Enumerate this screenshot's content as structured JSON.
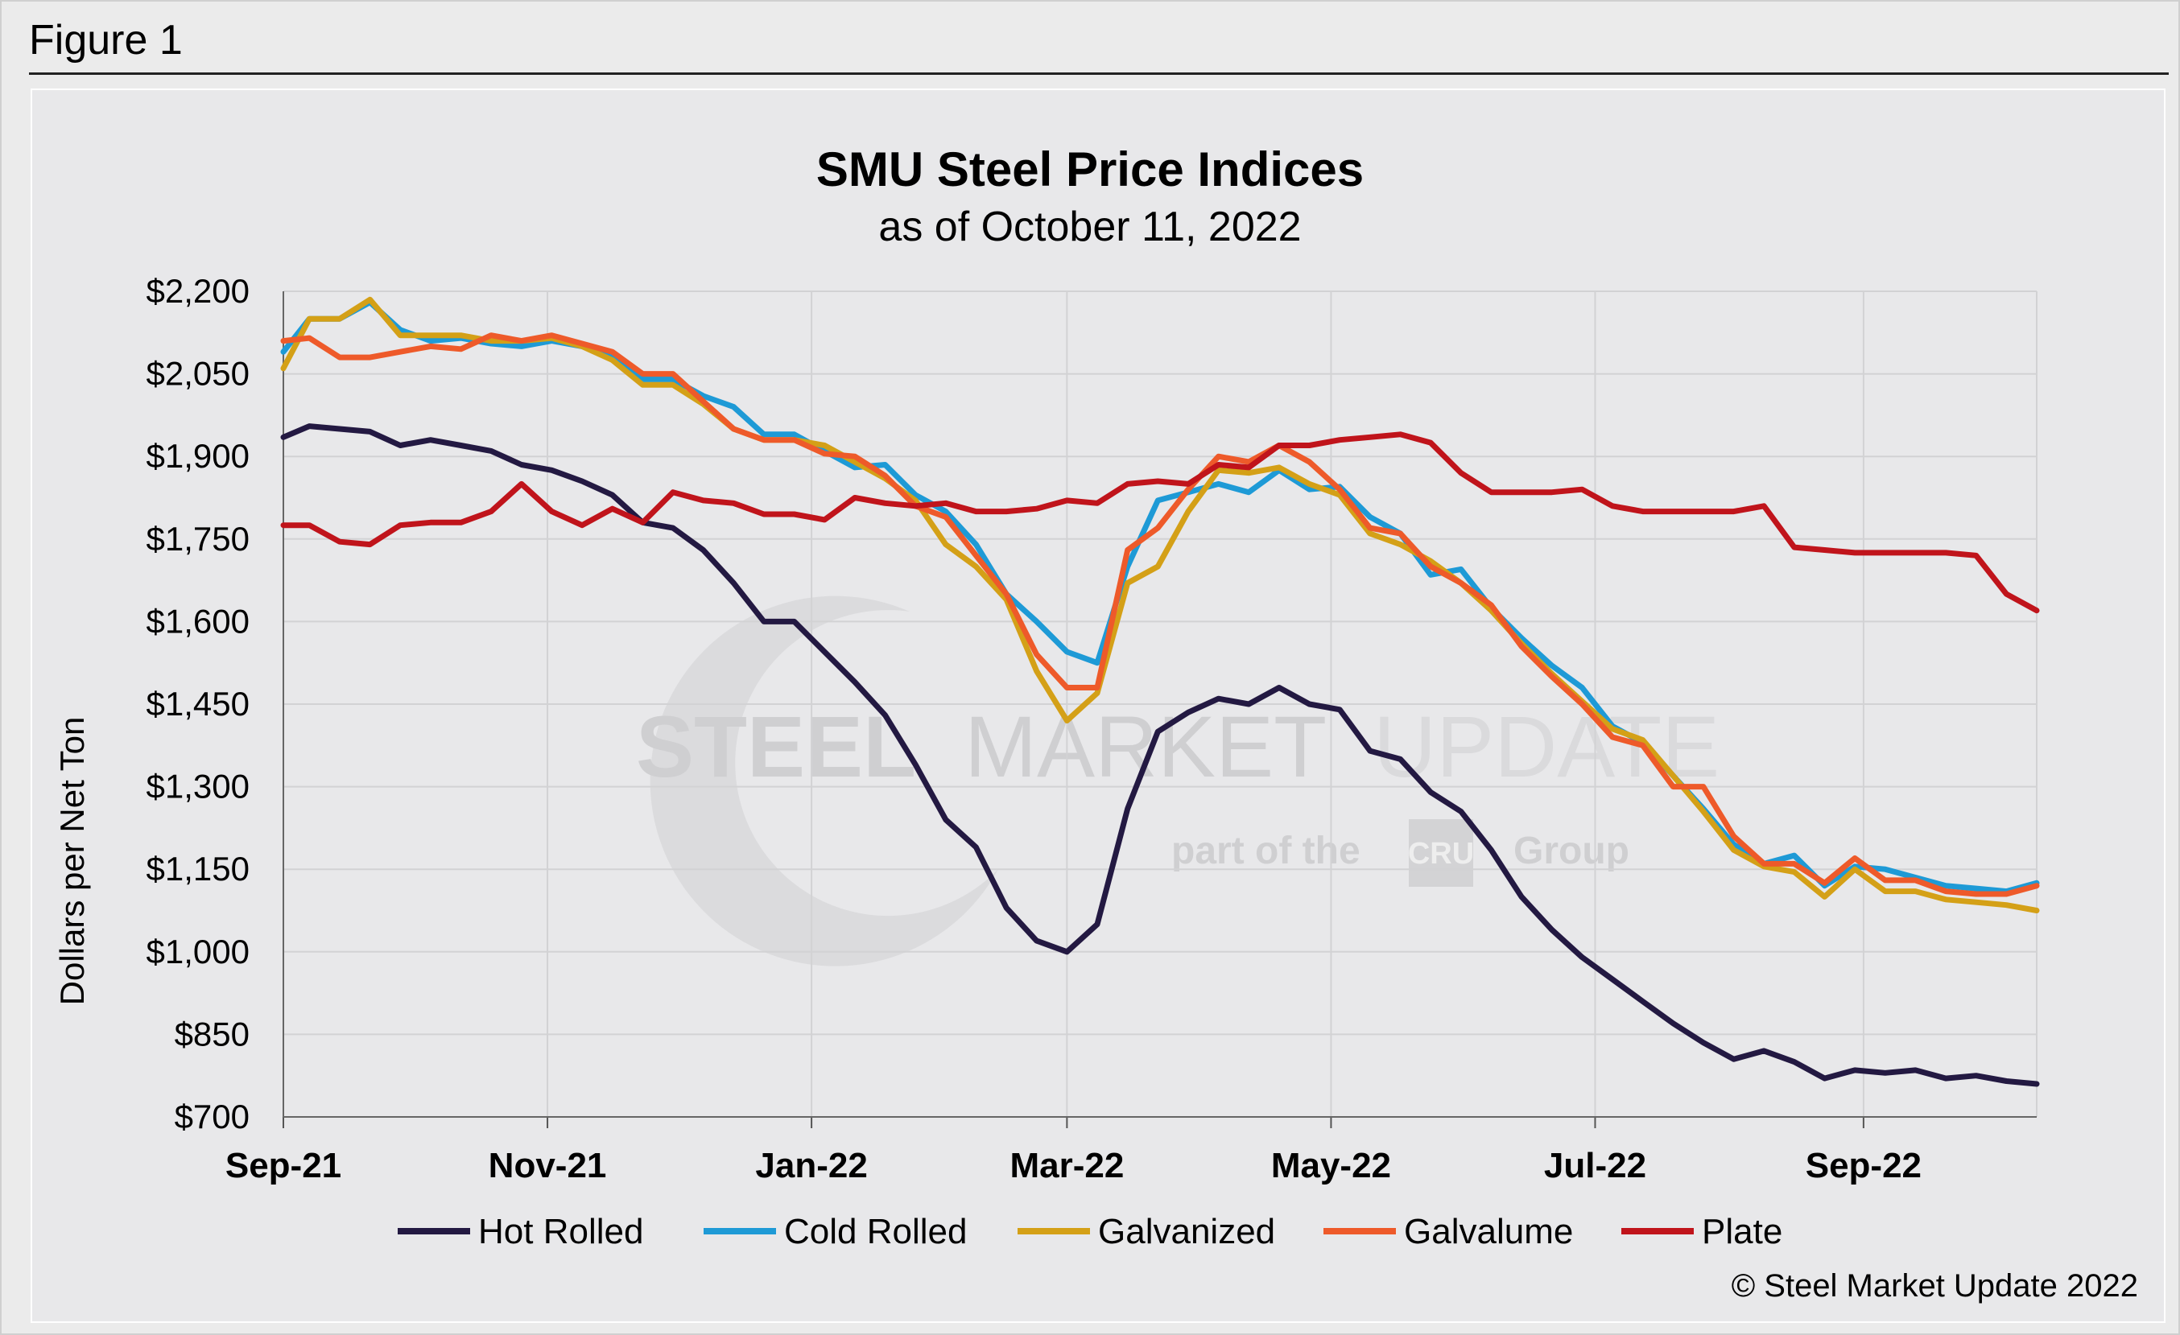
{
  "figure_label": "Figure 1",
  "copyright": "© Steel Market Update 2022",
  "watermark": {
    "line1_bold": "STEEL",
    "line1_mid": "MARKET",
    "line1_light": "UPDATE",
    "line2_a": "part of the",
    "line2_logo": "CRU",
    "line2_b": "Group"
  },
  "colors": {
    "hot_rolled": "#231942",
    "cold_rolled": "#1e9ad6",
    "galvanized": "#d4a017",
    "galvalume": "#ee5a2a",
    "plate": "#c0141b"
  },
  "chart_data": {
    "type": "line",
    "title": "SMU Steel Price Indices",
    "subtitle": "as of October 11, 2022",
    "xlabel": "",
    "ylabel": "Dollars per Net Ton",
    "ylim": [
      700,
      2200
    ],
    "yticks": [
      700,
      850,
      1000,
      1150,
      1300,
      1450,
      1600,
      1750,
      1900,
      2050,
      2200
    ],
    "ytick_labels": [
      "$700",
      "$850",
      "$1,000",
      "$1,150",
      "$1,300",
      "$1,450",
      "$1,600",
      "$1,750",
      "$1,900",
      "$2,050",
      "$2,200"
    ],
    "xlim": [
      "2021-09-01",
      "2022-10-11"
    ],
    "xticks": [
      "2021-09-01",
      "2021-11-01",
      "2022-01-01",
      "2022-03-01",
      "2022-05-01",
      "2022-07-01",
      "2022-09-01"
    ],
    "xtick_labels": [
      "Sep-21",
      "Nov-21",
      "Jan-22",
      "Mar-22",
      "May-22",
      "Jul-22",
      "Sep-22"
    ],
    "grid": true,
    "legend_position": "bottom",
    "x": [
      "2021-09-01",
      "2021-09-07",
      "2021-09-14",
      "2021-09-21",
      "2021-09-28",
      "2021-10-05",
      "2021-10-12",
      "2021-10-19",
      "2021-10-26",
      "2021-11-02",
      "2021-11-09",
      "2021-11-16",
      "2021-11-23",
      "2021-11-30",
      "2021-12-07",
      "2021-12-14",
      "2021-12-21",
      "2021-12-28",
      "2022-01-04",
      "2022-01-11",
      "2022-01-18",
      "2022-01-25",
      "2022-02-01",
      "2022-02-08",
      "2022-02-15",
      "2022-02-22",
      "2022-03-01",
      "2022-03-08",
      "2022-03-15",
      "2022-03-22",
      "2022-03-29",
      "2022-04-05",
      "2022-04-12",
      "2022-04-19",
      "2022-04-26",
      "2022-05-03",
      "2022-05-10",
      "2022-05-17",
      "2022-05-24",
      "2022-05-31",
      "2022-06-07",
      "2022-06-14",
      "2022-06-21",
      "2022-06-28",
      "2022-07-05",
      "2022-07-12",
      "2022-07-19",
      "2022-07-26",
      "2022-08-02",
      "2022-08-09",
      "2022-08-16",
      "2022-08-23",
      "2022-08-30",
      "2022-09-06",
      "2022-09-13",
      "2022-09-20",
      "2022-09-27",
      "2022-10-04",
      "2022-10-11"
    ],
    "series": [
      {
        "name": "Hot Rolled",
        "color_key": "hot_rolled",
        "values": [
          1935,
          1955,
          1950,
          1945,
          1920,
          1930,
          1920,
          1910,
          1885,
          1875,
          1855,
          1830,
          1780,
          1770,
          1730,
          1670,
          1600,
          1600,
          1545,
          1490,
          1430,
          1340,
          1240,
          1190,
          1080,
          1020,
          1000,
          1050,
          1260,
          1400,
          1435,
          1460,
          1450,
          1480,
          1450,
          1440,
          1365,
          1350,
          1290,
          1255,
          1185,
          1100,
          1040,
          990,
          950,
          910,
          870,
          835,
          805,
          820,
          800,
          770,
          785,
          780,
          785,
          770,
          775,
          765,
          760
        ]
      },
      {
        "name": "Cold Rolled",
        "color_key": "cold_rolled",
        "values": [
          2090,
          2150,
          2150,
          2180,
          2130,
          2110,
          2115,
          2105,
          2100,
          2110,
          2100,
          2085,
          2040,
          2040,
          2010,
          1990,
          1940,
          1940,
          1910,
          1880,
          1885,
          1830,
          1800,
          1740,
          1650,
          1600,
          1545,
          1525,
          1700,
          1820,
          1835,
          1850,
          1835,
          1875,
          1840,
          1845,
          1790,
          1760,
          1685,
          1695,
          1625,
          1570,
          1520,
          1480,
          1410,
          1380,
          1320,
          1260,
          1195,
          1160,
          1175,
          1120,
          1155,
          1150,
          1135,
          1120,
          1115,
          1110,
          1125
        ]
      },
      {
        "name": "Galvanized",
        "color_key": "galvanized",
        "values": [
          2060,
          2150,
          2150,
          2185,
          2120,
          2120,
          2120,
          2110,
          2110,
          2115,
          2100,
          2075,
          2030,
          2030,
          1995,
          1950,
          1930,
          1930,
          1920,
          1890,
          1860,
          1820,
          1740,
          1700,
          1640,
          1510,
          1420,
          1470,
          1670,
          1700,
          1800,
          1875,
          1870,
          1880,
          1850,
          1830,
          1760,
          1740,
          1710,
          1670,
          1620,
          1560,
          1505,
          1455,
          1405,
          1385,
          1320,
          1255,
          1185,
          1155,
          1145,
          1100,
          1150,
          1110,
          1110,
          1095,
          1090,
          1085,
          1075
        ]
      },
      {
        "name": "Galvalume",
        "color_key": "galvalume",
        "values": [
          2110,
          2115,
          2080,
          2080,
          2090,
          2100,
          2095,
          2120,
          2110,
          2120,
          2105,
          2090,
          2050,
          2050,
          2000,
          1950,
          1930,
          1930,
          1905,
          1900,
          1865,
          1810,
          1790,
          1720,
          1650,
          1540,
          1480,
          1480,
          1730,
          1770,
          1840,
          1900,
          1890,
          1920,
          1890,
          1840,
          1770,
          1760,
          1700,
          1670,
          1630,
          1555,
          1500,
          1450,
          1390,
          1375,
          1300,
          1300,
          1210,
          1160,
          1160,
          1125,
          1170,
          1130,
          1130,
          1110,
          1105,
          1105,
          1120
        ]
      },
      {
        "name": "Plate",
        "color_key": "plate",
        "values": [
          1775,
          1775,
          1745,
          1740,
          1775,
          1780,
          1780,
          1800,
          1850,
          1800,
          1775,
          1805,
          1780,
          1835,
          1820,
          1815,
          1795,
          1795,
          1785,
          1825,
          1815,
          1810,
          1815,
          1800,
          1800,
          1805,
          1820,
          1815,
          1850,
          1855,
          1850,
          1885,
          1880,
          1920,
          1920,
          1930,
          1935,
          1940,
          1925,
          1870,
          1835,
          1835,
          1835,
          1840,
          1810,
          1800,
          1800,
          1800,
          1800,
          1810,
          1735,
          1730,
          1725,
          1725,
          1725,
          1725,
          1720,
          1650,
          1620
        ]
      }
    ]
  }
}
